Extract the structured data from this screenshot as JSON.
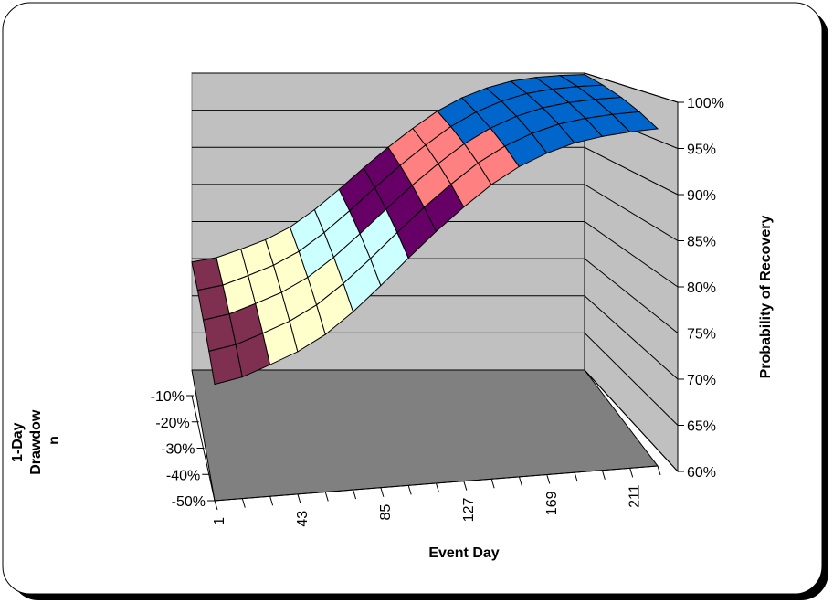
{
  "chart_data": {
    "type": "surface",
    "title": "",
    "xlabel": "Event Day",
    "ylabel": "1-Day Drawdown",
    "ylabel_lines": [
      "1-Day",
      "Drawdow",
      "n"
    ],
    "zlabel": "Probability of Recovery",
    "x_ticks": [
      "1",
      "43",
      "85",
      "127",
      "169",
      "211"
    ],
    "y_ticks": [
      "-10%",
      "-20%",
      "-30%",
      "-40%",
      "-50%"
    ],
    "z_ticks": [
      "60%",
      "65%",
      "70%",
      "75%",
      "80%",
      "85%",
      "90%",
      "95%",
      "100%"
    ],
    "zlim": [
      0.6,
      1.0
    ],
    "grid": true,
    "x": [
      1,
      15,
      29,
      43,
      57,
      71,
      85,
      99,
      113,
      127,
      141,
      155,
      169,
      183,
      197,
      211,
      225
    ],
    "drawdown": [
      "-50%",
      "-40%",
      "-30%",
      "-20%",
      "-10%"
    ],
    "surface": [
      [
        0.7455,
        0.7514,
        0.763,
        0.7755,
        0.7925,
        0.816,
        0.8433,
        0.8723,
        0.9001,
        0.9255,
        0.9487,
        0.9666,
        0.9798,
        0.989,
        0.9941,
        0.9968,
        0.998
      ],
      [
        0.7438,
        0.7497,
        0.7612,
        0.7737,
        0.7907,
        0.8141,
        0.8413,
        0.8702,
        0.8979,
        0.9232,
        0.9463,
        0.9642,
        0.9773,
        0.9864,
        0.9914,
        0.994,
        0.9952
      ],
      [
        0.7405,
        0.7464,
        0.7578,
        0.7702,
        0.7871,
        0.8104,
        0.8375,
        0.8662,
        0.8938,
        0.919,
        0.9419,
        0.9597,
        0.9727,
        0.9817,
        0.9867,
        0.9893,
        0.9905
      ],
      [
        0.7357,
        0.7415,
        0.7528,
        0.7651,
        0.7819,
        0.805,
        0.8319,
        0.8604,
        0.8878,
        0.9127,
        0.9355,
        0.9531,
        0.966,
        0.975,
        0.9799,
        0.9825,
        0.9837
      ],
      [
        0.7293,
        0.7351,
        0.7462,
        0.7584,
        0.775,
        0.7979,
        0.8245,
        0.8528,
        0.8799,
        0.9046,
        0.9271,
        0.9446,
        0.9573,
        0.9662,
        0.971,
        0.9736,
        0.9747
      ]
    ],
    "band_colors": [
      "#7F2F50",
      "#FFFFCC",
      "#CCFFFF",
      "#660066",
      "#FF8080",
      "#0066CC",
      "#CCCCFF"
    ]
  },
  "frame": {
    "background": "#ffffff",
    "border": "#000000"
  },
  "walls": {
    "back": "#c0c0c0",
    "side": "#c0c0c0",
    "floor": "#808080",
    "grid": "#000000"
  }
}
